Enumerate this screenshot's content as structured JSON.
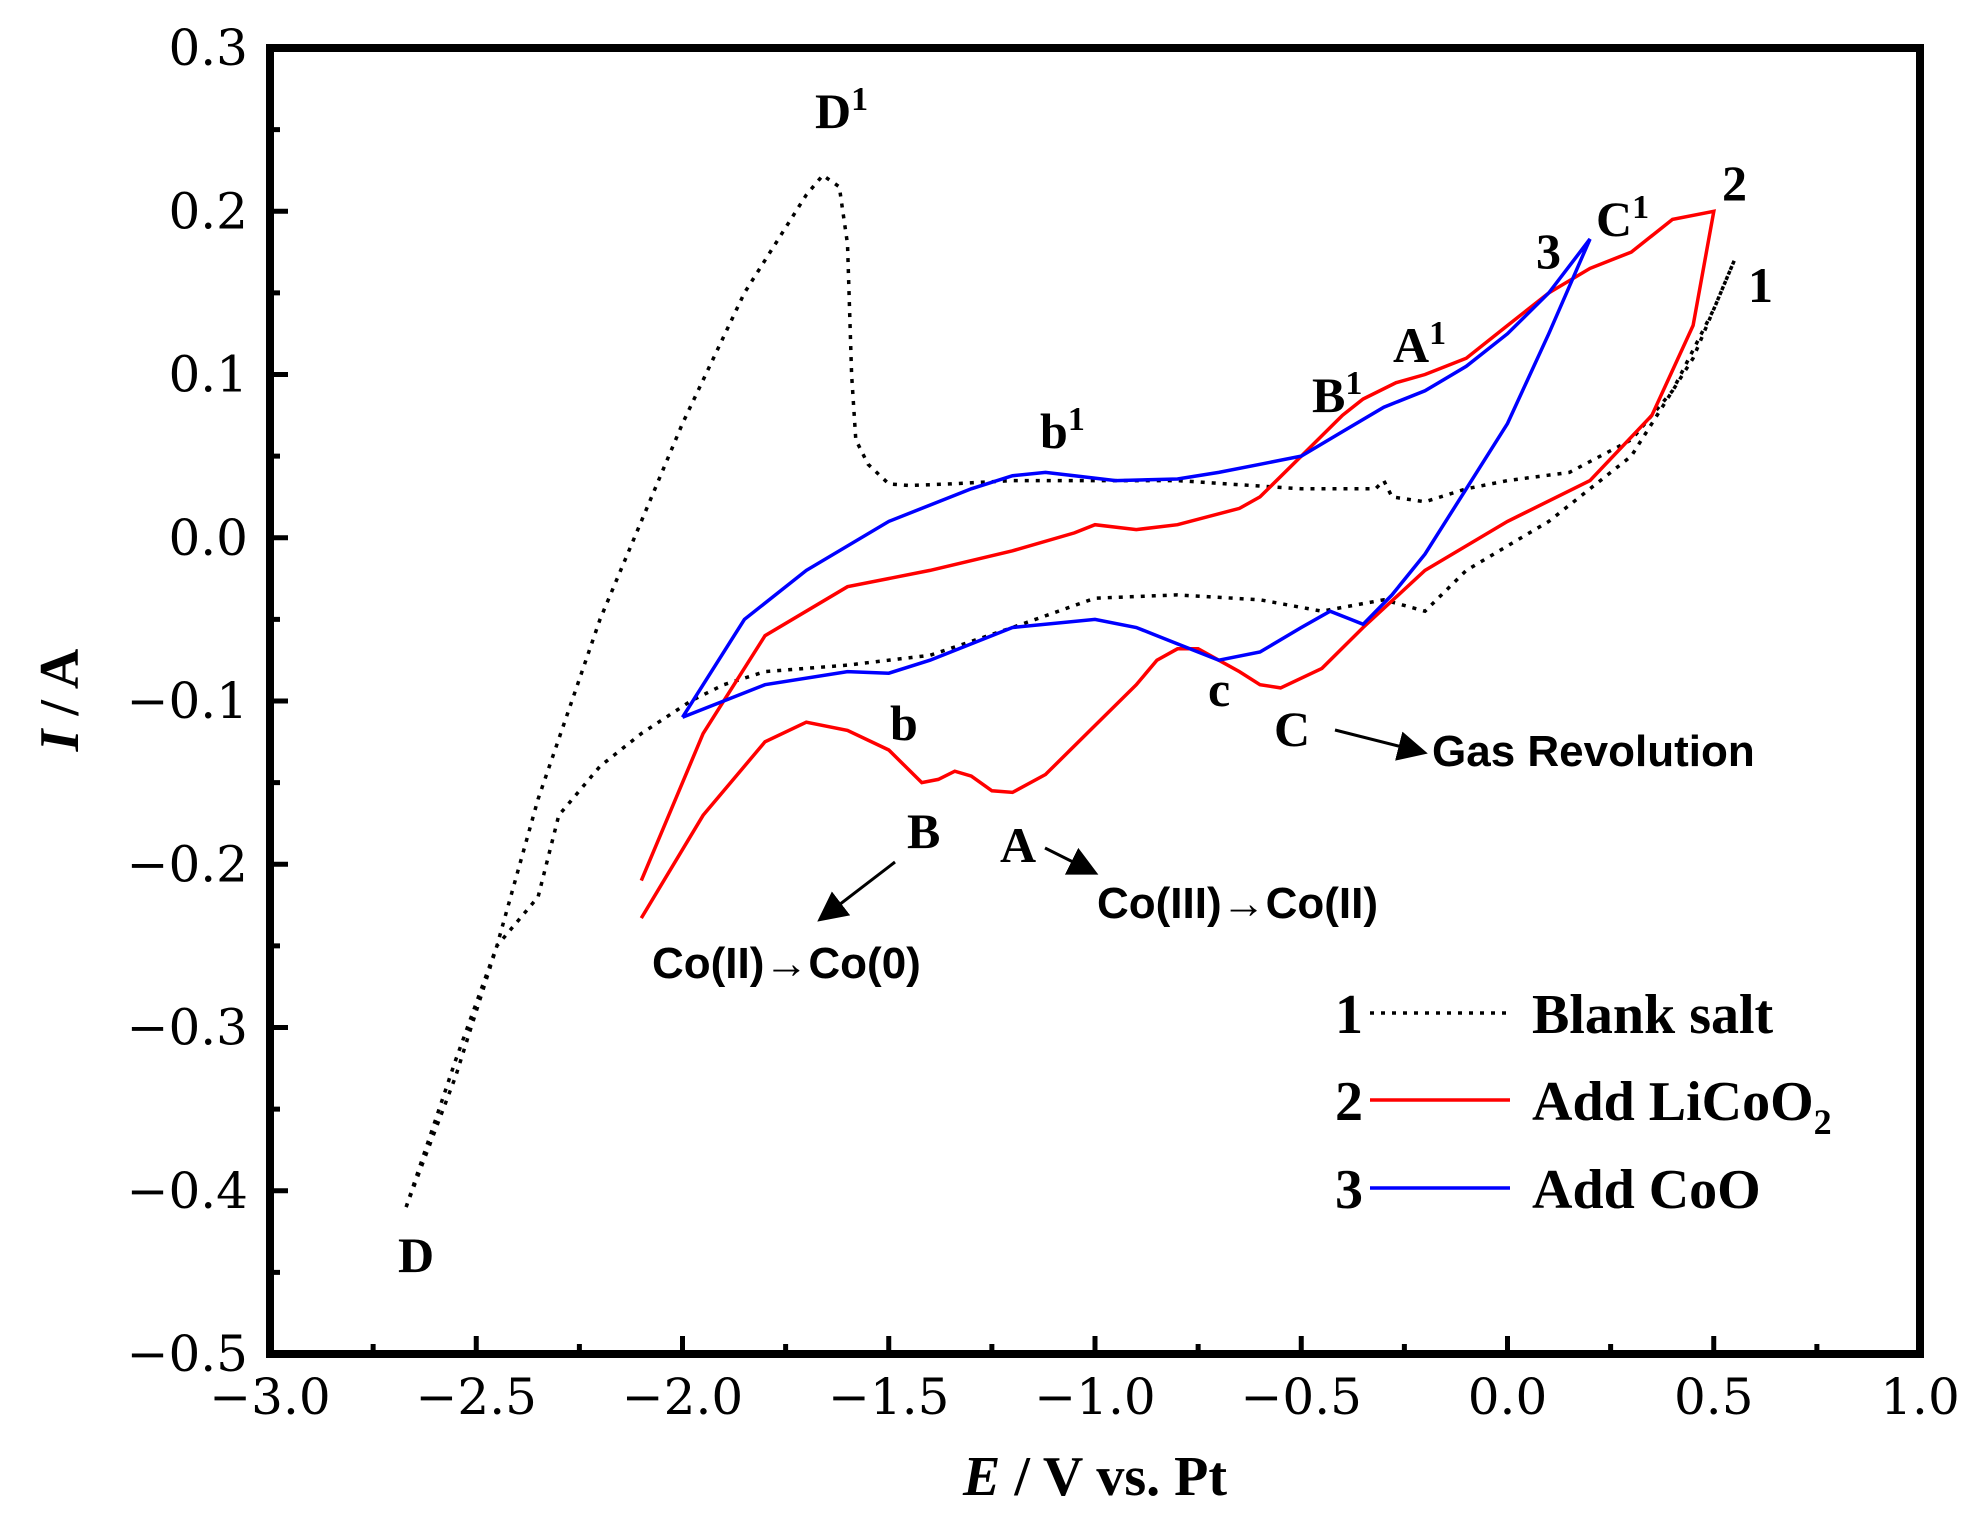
{
  "chart_data": {
    "type": "line",
    "xlabel_italic": "E",
    "xlabel_rest": " / V vs. Pt",
    "ylabel_italic": "I",
    "ylabel_rest": " / A",
    "xlim": [
      -3.0,
      1.0
    ],
    "ylim": [
      -0.5,
      0.3
    ],
    "x_ticks": [
      -3.0,
      -2.5,
      -2.0,
      -1.5,
      -1.0,
      -0.5,
      0.0,
      0.5,
      1.0
    ],
    "x_tick_labels": [
      "−3.0",
      "−2.5",
      "−2.0",
      "−1.5",
      "−1.0",
      "−0.5",
      "0.0",
      "0.5",
      "1.0"
    ],
    "y_ticks": [
      -0.5,
      -0.4,
      -0.3,
      -0.2,
      -0.1,
      0.0,
      0.1,
      0.2,
      0.3
    ],
    "y_tick_labels": [
      "−0.5",
      "−0.4",
      "−0.3",
      "−0.2",
      "−0.1",
      "0.0",
      "0.1",
      "0.2",
      "0.3"
    ],
    "grid": false,
    "legend_position": "bottom-right",
    "series": [
      {
        "id": "1",
        "name": "Blank salt",
        "color": "#000000",
        "style": "dotted",
        "points": [
          [
            -2.67,
            -0.41
          ],
          [
            -2.55,
            -0.32
          ],
          [
            -2.45,
            -0.25
          ],
          [
            -2.35,
            -0.22
          ],
          [
            -2.3,
            -0.17
          ],
          [
            -2.2,
            -0.14
          ],
          [
            -2.1,
            -0.12
          ],
          [
            -1.98,
            -0.1
          ],
          [
            -1.9,
            -0.09
          ],
          [
            -1.8,
            -0.082
          ],
          [
            -1.6,
            -0.078
          ],
          [
            -1.4,
            -0.072
          ],
          [
            -1.2,
            -0.055
          ],
          [
            -1.0,
            -0.037
          ],
          [
            -0.8,
            -0.035
          ],
          [
            -0.6,
            -0.038
          ],
          [
            -0.45,
            -0.045
          ],
          [
            -0.3,
            -0.038
          ],
          [
            -0.2,
            -0.045
          ],
          [
            -0.1,
            -0.02
          ],
          [
            0.1,
            0.01
          ],
          [
            0.3,
            0.05
          ],
          [
            0.45,
            0.11
          ],
          [
            0.55,
            0.17
          ],
          [
            0.5,
            0.14
          ],
          [
            0.4,
            0.09
          ],
          [
            0.3,
            0.06
          ],
          [
            0.15,
            0.04
          ],
          [
            0.0,
            0.035
          ],
          [
            -0.1,
            0.03
          ],
          [
            -0.2,
            0.022
          ],
          [
            -0.28,
            0.025
          ],
          [
            -0.3,
            0.035
          ],
          [
            -0.32,
            0.03
          ],
          [
            -0.5,
            0.03
          ],
          [
            -0.8,
            0.035
          ],
          [
            -1.0,
            0.035
          ],
          [
            -1.2,
            0.035
          ],
          [
            -1.35,
            0.033
          ],
          [
            -1.45,
            0.032
          ],
          [
            -1.5,
            0.033
          ],
          [
            -1.55,
            0.045
          ],
          [
            -1.58,
            0.06
          ],
          [
            -1.59,
            0.1
          ],
          [
            -1.6,
            0.18
          ],
          [
            -1.62,
            0.215
          ],
          [
            -1.66,
            0.222
          ],
          [
            -1.7,
            0.21
          ],
          [
            -1.85,
            0.15
          ],
          [
            -2.0,
            0.07
          ],
          [
            -2.2,
            -0.05
          ],
          [
            -2.35,
            -0.16
          ],
          [
            -2.45,
            -0.25
          ],
          [
            -2.55,
            -0.33
          ],
          [
            -2.67,
            -0.41
          ]
        ]
      },
      {
        "id": "2",
        "name": "Add LiCoO₂",
        "color": "#ff0000",
        "style": "solid",
        "points": [
          [
            -2.1,
            -0.233
          ],
          [
            -1.95,
            -0.17
          ],
          [
            -1.8,
            -0.125
          ],
          [
            -1.7,
            -0.113
          ],
          [
            -1.6,
            -0.118
          ],
          [
            -1.5,
            -0.13
          ],
          [
            -1.42,
            -0.15
          ],
          [
            -1.38,
            -0.148
          ],
          [
            -1.34,
            -0.143
          ],
          [
            -1.3,
            -0.146
          ],
          [
            -1.25,
            -0.155
          ],
          [
            -1.2,
            -0.156
          ],
          [
            -1.12,
            -0.145
          ],
          [
            -1.0,
            -0.115
          ],
          [
            -0.9,
            -0.09
          ],
          [
            -0.85,
            -0.075
          ],
          [
            -0.8,
            -0.068
          ],
          [
            -0.75,
            -0.068
          ],
          [
            -0.65,
            -0.082
          ],
          [
            -0.6,
            -0.09
          ],
          [
            -0.55,
            -0.092
          ],
          [
            -0.45,
            -0.08
          ],
          [
            -0.35,
            -0.055
          ],
          [
            -0.2,
            -0.02
          ],
          [
            0.0,
            0.01
          ],
          [
            0.2,
            0.035
          ],
          [
            0.35,
            0.075
          ],
          [
            0.45,
            0.13
          ],
          [
            0.5,
            0.2
          ],
          [
            0.4,
            0.195
          ],
          [
            0.3,
            0.175
          ],
          [
            0.25,
            0.17
          ],
          [
            0.2,
            0.165
          ],
          [
            0.1,
            0.15
          ],
          [
            0.0,
            0.13
          ],
          [
            -0.1,
            0.11
          ],
          [
            -0.2,
            0.1
          ],
          [
            -0.27,
            0.095
          ],
          [
            -0.35,
            0.085
          ],
          [
            -0.4,
            0.075
          ],
          [
            -0.5,
            0.05
          ],
          [
            -0.6,
            0.025
          ],
          [
            -0.65,
            0.018
          ],
          [
            -0.8,
            0.008
          ],
          [
            -0.9,
            0.005
          ],
          [
            -1.0,
            0.008
          ],
          [
            -1.05,
            0.003
          ],
          [
            -1.2,
            -0.008
          ],
          [
            -1.4,
            -0.02
          ],
          [
            -1.6,
            -0.03
          ],
          [
            -1.8,
            -0.06
          ],
          [
            -1.95,
            -0.12
          ],
          [
            -2.1,
            -0.21
          ]
        ]
      },
      {
        "id": "3",
        "name": "Add CoO",
        "color": "#0000ff",
        "style": "solid",
        "points": [
          [
            -2.0,
            -0.11
          ],
          [
            -1.8,
            -0.09
          ],
          [
            -1.6,
            -0.082
          ],
          [
            -1.5,
            -0.083
          ],
          [
            -1.4,
            -0.075
          ],
          [
            -1.2,
            -0.055
          ],
          [
            -1.0,
            -0.05
          ],
          [
            -0.9,
            -0.055
          ],
          [
            -0.8,
            -0.065
          ],
          [
            -0.7,
            -0.075
          ],
          [
            -0.6,
            -0.07
          ],
          [
            -0.5,
            -0.055
          ],
          [
            -0.43,
            -0.045
          ],
          [
            -0.38,
            -0.05
          ],
          [
            -0.35,
            -0.053
          ],
          [
            -0.28,
            -0.035
          ],
          [
            -0.2,
            -0.01
          ],
          [
            -0.1,
            0.03
          ],
          [
            0.0,
            0.07
          ],
          [
            0.1,
            0.125
          ],
          [
            0.2,
            0.183
          ],
          [
            0.1,
            0.15
          ],
          [
            0.0,
            0.125
          ],
          [
            -0.1,
            0.105
          ],
          [
            -0.2,
            0.09
          ],
          [
            -0.3,
            0.08
          ],
          [
            -0.4,
            0.065
          ],
          [
            -0.5,
            0.05
          ],
          [
            -0.6,
            0.045
          ],
          [
            -0.7,
            0.04
          ],
          [
            -0.8,
            0.036
          ],
          [
            -0.95,
            0.035
          ],
          [
            -1.05,
            0.038
          ],
          [
            -1.12,
            0.04
          ],
          [
            -1.2,
            0.038
          ],
          [
            -1.3,
            0.03
          ],
          [
            -1.5,
            0.01
          ],
          [
            -1.7,
            -0.02
          ],
          [
            -1.85,
            -0.05
          ],
          [
            -2.0,
            -0.11
          ]
        ]
      }
    ],
    "annotations": {
      "D1": {
        "letter": "D",
        "sup": "1"
      },
      "D": "D",
      "b1": {
        "letter": "b",
        "sup": "1"
      },
      "B1": {
        "letter": "B",
        "sup": "1"
      },
      "A1": {
        "letter": "A",
        "sup": "1"
      },
      "C1": {
        "letter": "C",
        "sup": "1"
      },
      "label_3": "3",
      "label_2": "2",
      "label_1": "1",
      "b": "b",
      "B": "B",
      "A": "A",
      "c": "c",
      "C": "C",
      "gas": "Gas Revolution",
      "co_iii_ii": "Co(III)→Co(II)",
      "co_ii_0": "Co(II)→Co(0)"
    },
    "legend": [
      {
        "num": "1",
        "label": "Blank salt"
      },
      {
        "num": "2",
        "label_main": "Add LiCoO",
        "label_sub": "2"
      },
      {
        "num": "3",
        "label": "Add CoO"
      }
    ]
  }
}
